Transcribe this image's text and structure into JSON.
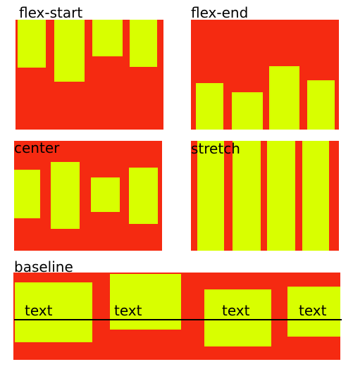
{
  "colors": {
    "container": "#f52a11",
    "item": "#d8ff00",
    "text": "#000000",
    "baseline_rule": "#000000"
  },
  "panels": {
    "flex_start": {
      "title": "flex-start"
    },
    "flex_end": {
      "title": "flex-end"
    },
    "center": {
      "title": "center"
    },
    "stretch": {
      "title": "stretch"
    },
    "baseline": {
      "title": "baseline",
      "item_texts": [
        "text",
        "text",
        "text",
        "text"
      ]
    }
  }
}
